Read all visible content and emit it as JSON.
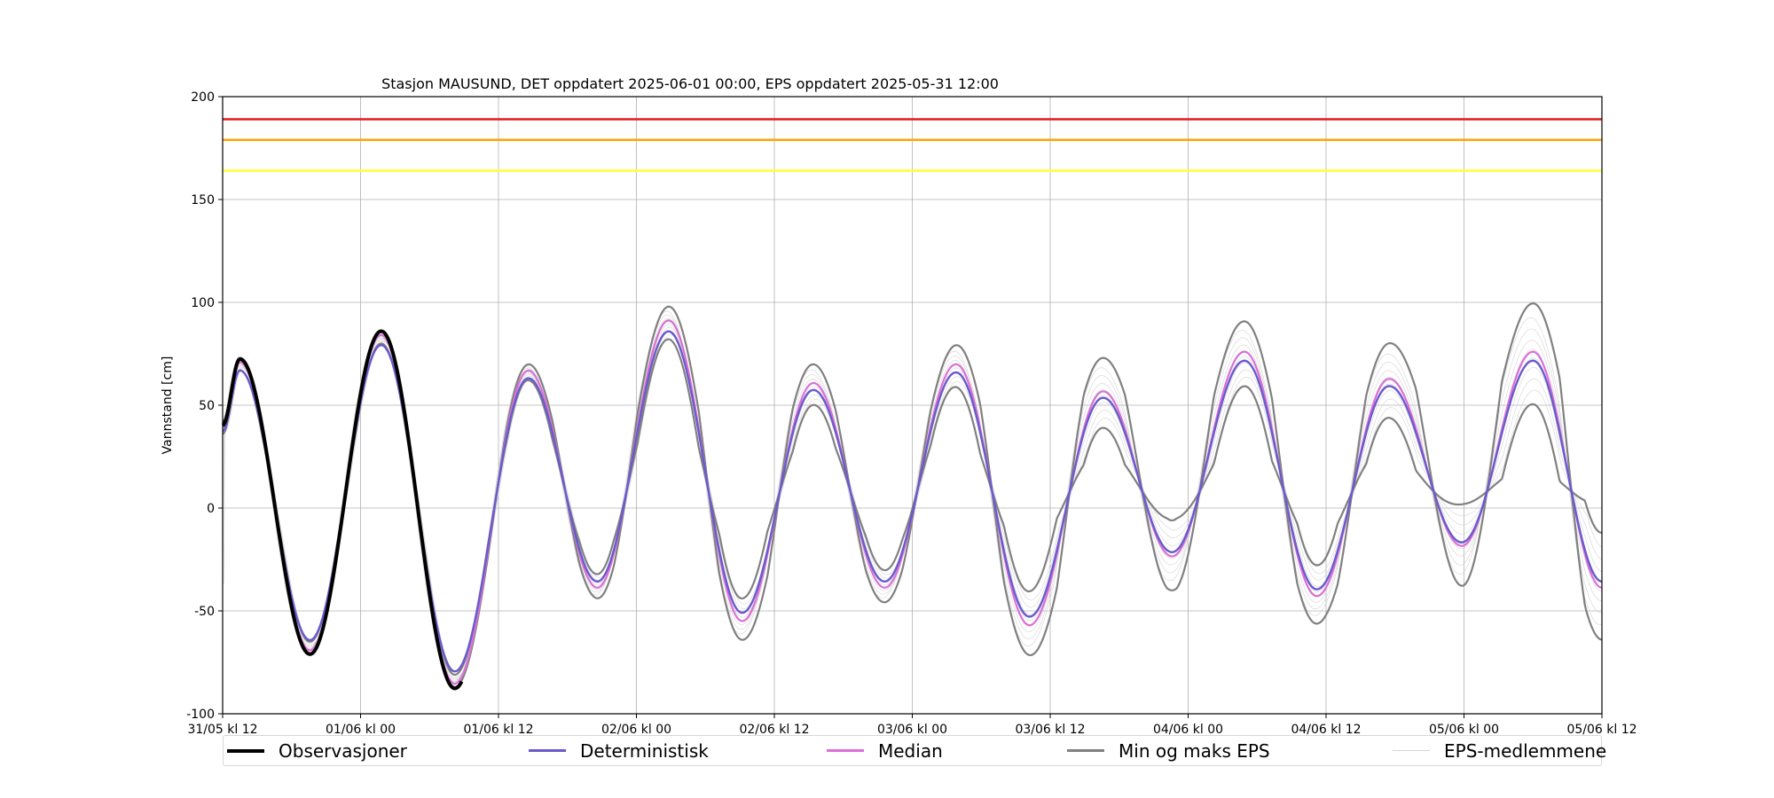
{
  "chart_data": {
    "type": "line",
    "title": "Stasjon MAUSUND, DET oppdatert 2025-06-01 00:00, EPS oppdatert 2025-05-31 12:00",
    "xlabel": "",
    "ylabel": "Vannstand [cm]",
    "ylim": [
      -100,
      200
    ],
    "yticks": [
      -100,
      -50,
      0,
      50,
      100,
      150,
      200
    ],
    "xrange_hours": [
      0,
      120
    ],
    "xticks": [
      {
        "hours": 0,
        "label": "31/05 kl 12"
      },
      {
        "hours": 12,
        "label": "01/06 kl 00"
      },
      {
        "hours": 24,
        "label": "01/06 kl 12"
      },
      {
        "hours": 36,
        "label": "02/06 kl 00"
      },
      {
        "hours": 48,
        "label": "02/06 kl 12"
      },
      {
        "hours": 60,
        "label": "03/06 kl 00"
      },
      {
        "hours": 72,
        "label": "03/06 kl 12"
      },
      {
        "hours": 84,
        "label": "04/06 kl 00"
      },
      {
        "hours": 96,
        "label": "04/06 kl 12"
      },
      {
        "hours": 108,
        "label": "05/06 kl 00"
      },
      {
        "hours": 120,
        "label": "05/06 kl 12"
      }
    ],
    "grid": true,
    "legend_position": "bottom",
    "threshold_lines": [
      {
        "value": 189,
        "color": "#e41a1c"
      },
      {
        "value": 179,
        "color": "#ffa500"
      },
      {
        "value": 164,
        "color": "#ffff33"
      }
    ],
    "extremes": [
      {
        "hours": 0,
        "value": 39
      },
      {
        "hours": 1.5,
        "value": 70
      },
      {
        "hours": 7.6,
        "value": -68
      },
      {
        "hours": 13.8,
        "value": 83
      },
      {
        "hours": 20.2,
        "value": -84
      },
      {
        "hours": 26.6,
        "value": 66
      },
      {
        "hours": 32.6,
        "value": -38
      },
      {
        "hours": 38.8,
        "value": 90
      },
      {
        "hours": 45.2,
        "value": -54
      },
      {
        "hours": 51.4,
        "value": 60
      },
      {
        "hours": 57.6,
        "value": -38
      },
      {
        "hours": 63.8,
        "value": 69
      },
      {
        "hours": 70.2,
        "value": -56
      },
      {
        "hours": 76.6,
        "value": 56
      },
      {
        "hours": 82.6,
        "value": -23
      },
      {
        "hours": 88.9,
        "value": 75
      },
      {
        "hours": 95.2,
        "value": -42
      },
      {
        "hours": 101.5,
        "value": 62
      },
      {
        "hours": 107.8,
        "value": -18
      },
      {
        "hours": 114.0,
        "value": 75
      },
      {
        "hours": 120,
        "value": -38
      }
    ],
    "observation_end_hours": 20.8,
    "eps_spread": [
      {
        "hours": 0,
        "value": 3
      },
      {
        "hours": 24,
        "value": 3
      },
      {
        "hours": 36,
        "value": 7
      },
      {
        "hours": 48,
        "value": 11
      },
      {
        "hours": 60,
        "value": 7
      },
      {
        "hours": 72,
        "value": 17
      },
      {
        "hours": 84,
        "value": 17
      },
      {
        "hours": 96,
        "value": 14
      },
      {
        "hours": 108,
        "value": 23
      },
      {
        "hours": 120,
        "value": 26
      }
    ],
    "series": [
      {
        "name": "Observasjoner",
        "color": "#000000",
        "width": 3
      },
      {
        "name": "Deterministisk",
        "color": "#6a5acd",
        "width": 2
      },
      {
        "name": "Median",
        "color": "#da70d6",
        "width": 2
      },
      {
        "name": "Min og maks EPS",
        "color": "#808080",
        "width": 2
      },
      {
        "name": "EPS-medlemmene",
        "color": "#d3d3d3",
        "width": 0.6
      }
    ]
  }
}
